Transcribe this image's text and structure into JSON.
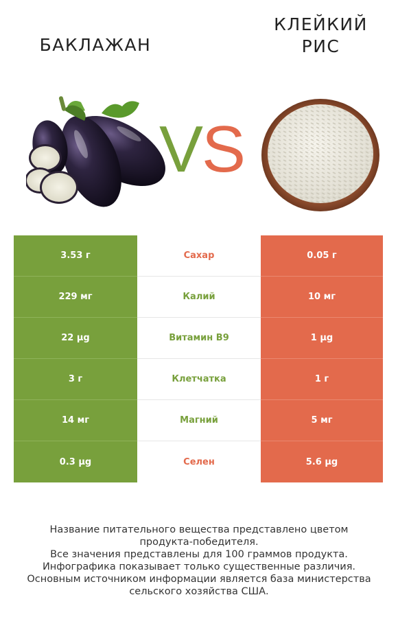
{
  "left_product": {
    "name": "БАКЛАЖАН",
    "color": "#78a03c"
  },
  "right_product": {
    "name_line1": "КЛЕЙКИЙ",
    "name_line2": "РИС",
    "color": "#e36a4c"
  },
  "vs": {
    "v": "V",
    "s": "S"
  },
  "rows": [
    {
      "left": "3.53 г",
      "nutrient": "Сахар",
      "right": "0.05 г",
      "winner": "right"
    },
    {
      "left": "229 мг",
      "nutrient": "Калий",
      "right": "10 мг",
      "winner": "left"
    },
    {
      "left": "22 µg",
      "nutrient": "Витамин B9",
      "right": "1 µg",
      "winner": "left"
    },
    {
      "left": "3 г",
      "nutrient": "Клетчатка",
      "right": "1 г",
      "winner": "left"
    },
    {
      "left": "14 мг",
      "nutrient": "Магний",
      "right": "5 мг",
      "winner": "left"
    },
    {
      "left": "0.3 µg",
      "nutrient": "Селен",
      "right": "5.6 µg",
      "winner": "right"
    }
  ],
  "footnote": {
    "line1": "Название питательного вещества представлено цветом",
    "line2": "продукта-победителя.",
    "line3": "Все значения представлены для 100 граммов продукта.",
    "line4": "Инфографика показывает только существенные различия.",
    "line5": "Основным источником информации является база министерства",
    "line6": "сельского хозяйства США."
  }
}
